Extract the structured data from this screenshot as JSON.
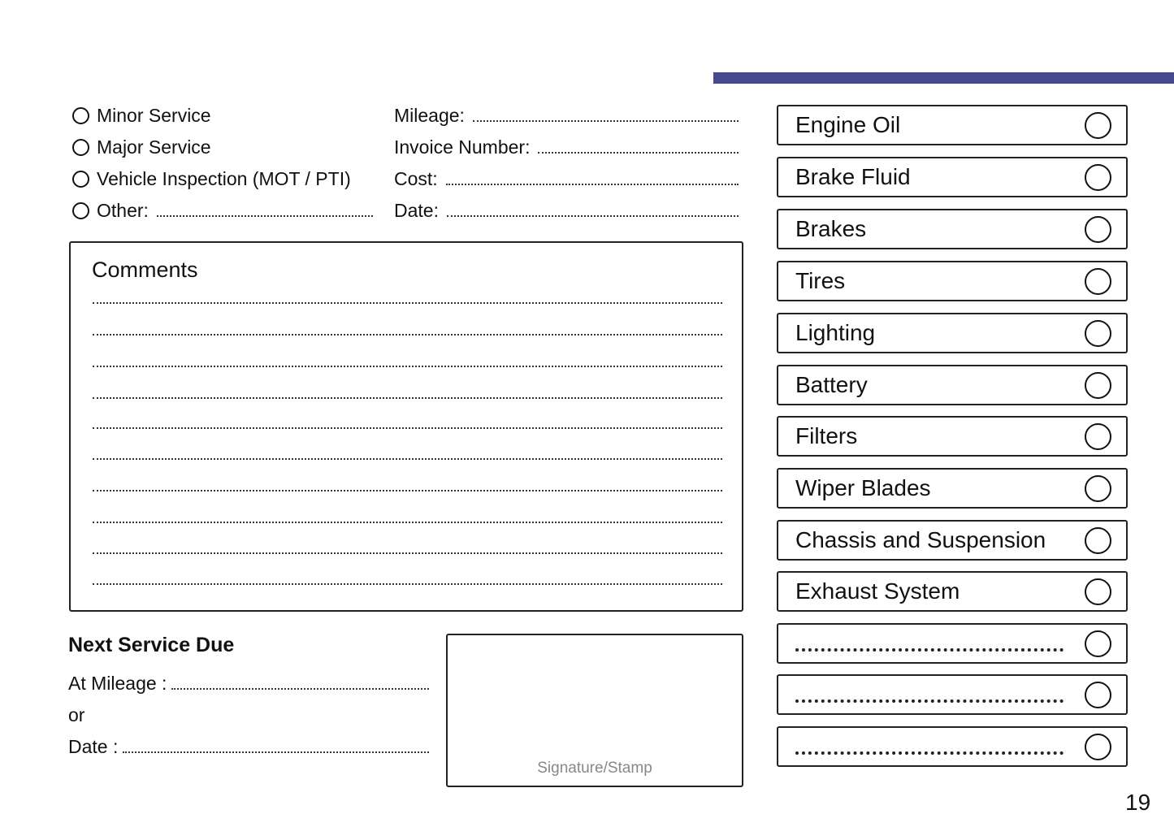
{
  "accent_color": "#454a8f",
  "service_types": [
    {
      "label": "Minor Service"
    },
    {
      "label": "Major Service"
    },
    {
      "label": "Vehicle Inspection (MOT / PTI)"
    },
    {
      "label": "Other:"
    }
  ],
  "fields": [
    {
      "label": "Mileage:"
    },
    {
      "label": "Invoice Number:"
    },
    {
      "label": "Cost:"
    },
    {
      "label": "Date:"
    }
  ],
  "comments": {
    "title": "Comments"
  },
  "next_service": {
    "title": "Next Service Due",
    "mileage_label": "At Mileage :",
    "or_label": "or",
    "date_label": "Date :"
  },
  "signature": {
    "label": "Signature/Stamp"
  },
  "checklist": [
    {
      "label": "Engine Oil"
    },
    {
      "label": "Brake Fluid"
    },
    {
      "label": "Brakes"
    },
    {
      "label": "Tires"
    },
    {
      "label": "Lighting"
    },
    {
      "label": "Battery"
    },
    {
      "label": "Filters"
    },
    {
      "label": "Wiper Blades"
    },
    {
      "label": "Chassis and Suspension"
    },
    {
      "label": "Exhaust System"
    },
    {
      "label": ""
    },
    {
      "label": ""
    },
    {
      "label": ""
    }
  ],
  "page_number": "19"
}
